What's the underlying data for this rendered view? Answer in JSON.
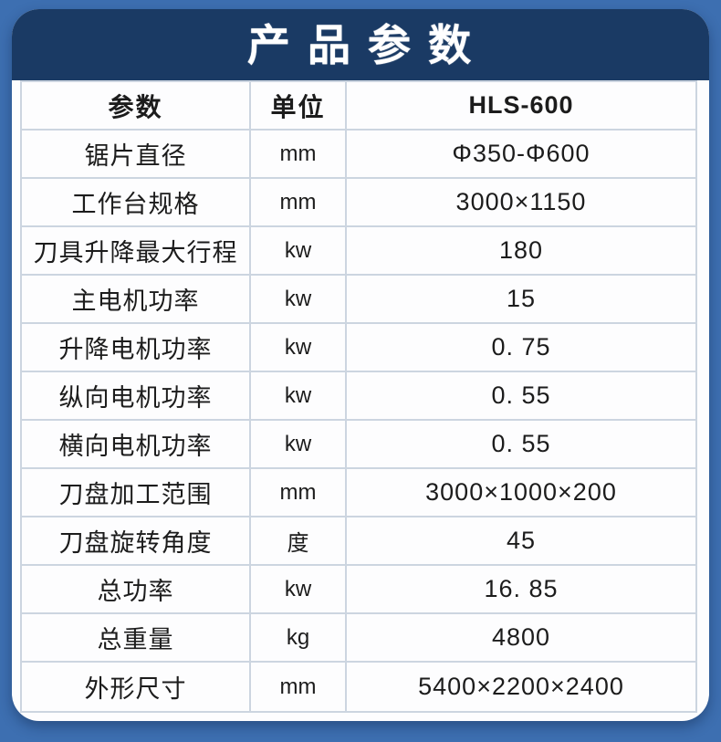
{
  "header": {
    "title": "产 品 参 数"
  },
  "model": "HLS-600",
  "colors": {
    "background_blue": "#3d6fb1",
    "title_band_navy": "#1a3a64",
    "title_text": "#ffffff",
    "panel_background": "#fdfdfe",
    "table_border": "#ccd5e0",
    "table_text": "#1c1c1c"
  },
  "table": {
    "headers": [
      "参数",
      "单位",
      "HLS-600"
    ],
    "rows": [
      [
        "锯片直径",
        "mm",
        "Φ350-Φ600"
      ],
      [
        "工作台规格",
        "mm",
        "3000×1150"
      ],
      [
        "刀具升降最大行程",
        "kw",
        "180"
      ],
      [
        "主电机功率",
        "kw",
        "15"
      ],
      [
        "升降电机功率",
        "kw",
        "0. 75"
      ],
      [
        "纵向电机功率",
        "kw",
        "0. 55"
      ],
      [
        "横向电机功率",
        "kw",
        "0. 55"
      ],
      [
        "刀盘加工范围",
        "mm",
        "3000×1000×200"
      ],
      [
        "刀盘旋转角度",
        "度",
        "45"
      ],
      [
        "总功率",
        "kw",
        "16. 85"
      ],
      [
        "总重量",
        "kg",
        "4800"
      ],
      [
        "外形尺寸",
        "mm",
        "5400×2200×2400"
      ]
    ]
  }
}
